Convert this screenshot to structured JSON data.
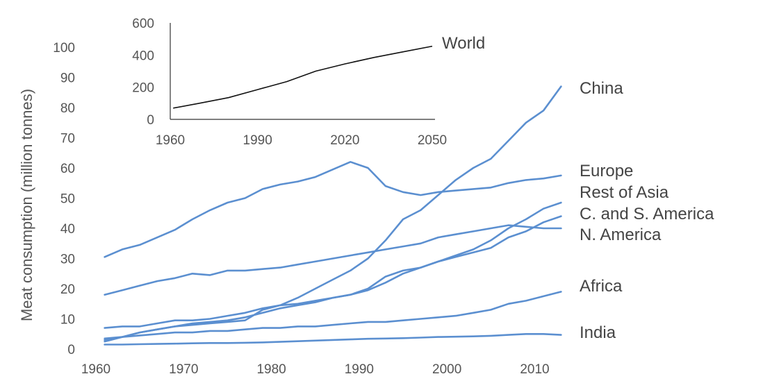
{
  "chart_data": [
    {
      "type": "line",
      "title": "",
      "xlabel": "",
      "ylabel": "Meat consumption (million tonnes)",
      "xlim": [
        1960,
        2014
      ],
      "ylim": [
        0,
        100
      ],
      "x_ticks": [
        "1960",
        "1970",
        "1980",
        "1990",
        "2000",
        "2010"
      ],
      "y_ticks": [
        "0",
        "10",
        "20",
        "30",
        "40",
        "50",
        "60",
        "70",
        "80",
        "90",
        "100"
      ],
      "grid": false,
      "legend": "direct labels at right end of lines",
      "color": "#5b8fd0",
      "x": [
        1961,
        1963,
        1965,
        1967,
        1969,
        1971,
        1973,
        1975,
        1977,
        1979,
        1981,
        1983,
        1985,
        1987,
        1989,
        1991,
        1993,
        1995,
        1997,
        1999,
        2001,
        2003,
        2005,
        2007,
        2009,
        2011,
        2013
      ],
      "series": [
        {
          "name": "China",
          "values": [
            2.5,
            4,
            5.5,
            6.5,
            7.5,
            8,
            8.5,
            9,
            9.5,
            13,
            14.5,
            17,
            20,
            23,
            26,
            30,
            36,
            43,
            46,
            51,
            56,
            60,
            63,
            69,
            75,
            79,
            87
          ]
        },
        {
          "name": "Europe",
          "values": [
            30.5,
            33,
            34.5,
            37,
            39.5,
            43,
            46,
            48.5,
            50,
            53,
            54.5,
            55.5,
            57,
            59.5,
            62,
            60,
            54,
            52,
            51,
            52,
            52.5,
            53,
            53.5,
            55,
            56,
            56.5,
            57.5
          ]
        },
        {
          "name": "Rest of Asia",
          "values": [
            3,
            4,
            5.5,
            6.5,
            7.5,
            8.5,
            9,
            9.5,
            10.5,
            12,
            13.5,
            14.5,
            15.5,
            17,
            18,
            19.5,
            22,
            25,
            27,
            29,
            31,
            33,
            36,
            40,
            43,
            46.5,
            48.5
          ]
        },
        {
          "name": "C. and S. America",
          "values": [
            7,
            7.5,
            7.5,
            8.5,
            9.5,
            9.5,
            10,
            11,
            12,
            13.5,
            14.5,
            15,
            16,
            17,
            18,
            20,
            24,
            26,
            27,
            29,
            30.5,
            32,
            33.5,
            37,
            39,
            42,
            44
          ]
        },
        {
          "name": "N. America",
          "values": [
            18,
            19.5,
            21,
            22.5,
            23.5,
            25,
            24.5,
            26,
            26,
            26.5,
            27,
            28,
            29,
            30,
            31,
            32,
            33,
            34,
            35,
            37,
            38,
            39,
            40,
            41,
            40.5,
            40,
            40
          ]
        },
        {
          "name": "Africa",
          "values": [
            3.5,
            4,
            4.5,
            5,
            5.5,
            5.5,
            6,
            6,
            6.5,
            7,
            7,
            7.5,
            7.5,
            8,
            8.5,
            9,
            9,
            9.5,
            10,
            10.5,
            11,
            12,
            13,
            15,
            16,
            17.5,
            19
          ]
        },
        {
          "name": "India",
          "values": [
            1.5,
            1.5,
            1.6,
            1.7,
            1.8,
            1.9,
            2,
            2,
            2.1,
            2.2,
            2.4,
            2.6,
            2.8,
            3,
            3.2,
            3.4,
            3.5,
            3.6,
            3.8,
            4,
            4.1,
            4.2,
            4.4,
            4.7,
            5,
            5,
            4.7
          ]
        }
      ]
    },
    {
      "type": "line",
      "title": "",
      "xlabel": "",
      "ylabel": "",
      "xlim": [
        1960,
        2050
      ],
      "ylim": [
        0,
        600
      ],
      "x_ticks": [
        "1960",
        "1990",
        "2020",
        "2050"
      ],
      "y_ticks": [
        "0",
        "200",
        "400",
        "600"
      ],
      "grid": false,
      "legend": "direct label at right end of line",
      "color": "#111111",
      "x": [
        1961,
        1970,
        1980,
        1990,
        2000,
        2010,
        2020,
        2030,
        2040,
        2050
      ],
      "series": [
        {
          "name": "World",
          "values": [
            70,
            100,
            135,
            185,
            235,
            300,
            345,
            385,
            420,
            455
          ]
        }
      ]
    }
  ]
}
